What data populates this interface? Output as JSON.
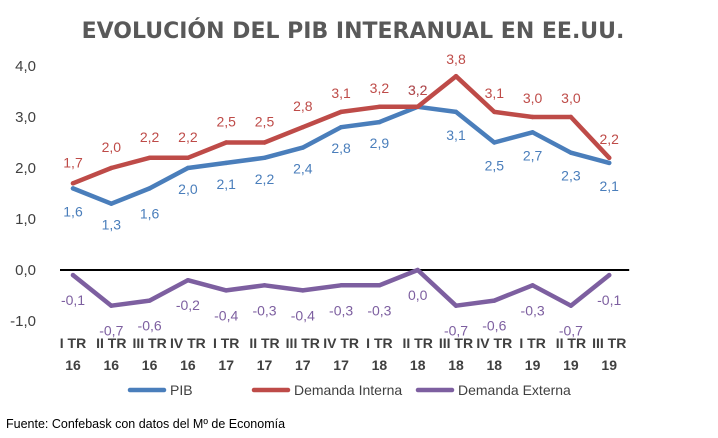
{
  "chart_data": {
    "type": "line",
    "title": "EVOLUCIÓN DEL PIB INTERANUAL EN EE.UU.",
    "categories": [
      [
        "I TR",
        "16"
      ],
      [
        "II TR",
        "16"
      ],
      [
        "III TR",
        "16"
      ],
      [
        "IV TR",
        "16"
      ],
      [
        "I TR",
        "17"
      ],
      [
        "II TR",
        "17"
      ],
      [
        "III TR",
        "17"
      ],
      [
        "IV TR",
        "17"
      ],
      [
        "I TR",
        "18"
      ],
      [
        "II TR",
        "18"
      ],
      [
        "III TR",
        "18"
      ],
      [
        "IV TR",
        "18"
      ],
      [
        "I TR",
        "19"
      ],
      [
        "II TR",
        "19"
      ],
      [
        "III TR",
        "19"
      ]
    ],
    "ylim": [
      -1.0,
      4.0
    ],
    "yticks": [
      "4,0",
      "3,0",
      "2,0",
      "1,0",
      "0,0",
      "-1,0"
    ],
    "ytick_values": [
      4,
      3,
      2,
      1,
      0,
      -1
    ],
    "series": [
      {
        "name": "PIB",
        "color": "#4a7ebb",
        "values": [
          1.6,
          1.3,
          1.6,
          2.0,
          2.1,
          2.2,
          2.4,
          2.8,
          2.9,
          3.2,
          3.1,
          2.5,
          2.7,
          2.3,
          2.1
        ],
        "labels": [
          "1,6",
          "1,3",
          "1,6",
          "2,0",
          "2,1",
          "2,2",
          "2,4",
          "2,8",
          "2,9",
          "3,2",
          "3,1",
          "2,5",
          "2,7",
          "2,3",
          "2,1"
        ]
      },
      {
        "name": "Demanda Interna",
        "color": "#be4b48",
        "values": [
          1.7,
          2.0,
          2.2,
          2.2,
          2.5,
          2.5,
          2.8,
          3.1,
          3.2,
          3.2,
          3.8,
          3.1,
          3.0,
          3.0,
          2.2
        ],
        "labels": [
          "1,7",
          "2,0",
          "2,2",
          "2,2",
          "2,5",
          "2,5",
          "2,8",
          "3,1",
          "3,2",
          "3,2",
          "3,8",
          "3,1",
          "3,0",
          "3,0",
          "2,2"
        ]
      },
      {
        "name": "Demanda Externa",
        "color": "#7d5fa0",
        "values": [
          -0.1,
          -0.7,
          -0.6,
          -0.2,
          -0.4,
          -0.3,
          -0.4,
          -0.3,
          -0.3,
          0.0,
          -0.7,
          -0.6,
          -0.3,
          -0.7,
          -0.1
        ],
        "labels": [
          "-0,1",
          "-0,7",
          "-0,6",
          "-0,2",
          "-0,4",
          "-0,3",
          "-0,4",
          "-0,3",
          "-0,3",
          "0,0",
          "-0,7",
          "-0,6",
          "-0,3",
          "-0,7",
          "-0,1"
        ]
      }
    ],
    "legend_position": "bottom"
  },
  "source": "Fuente: Confebask con datos del Mº de Economía"
}
